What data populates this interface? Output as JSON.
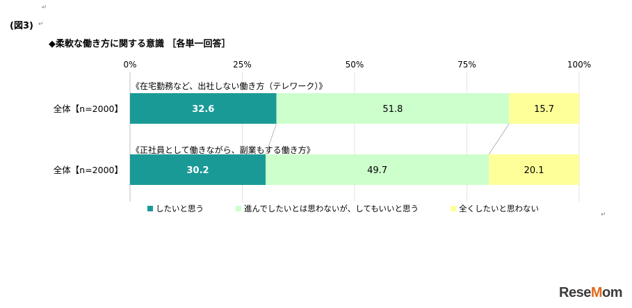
{
  "figure_label": "(図3)",
  "paragraph_mark": "↵",
  "watermark": "ReseMom",
  "colors": {
    "s1": "#1a9a97",
    "s2": "#ccffcc",
    "s3": "#ffff99",
    "axis": "#bfbfbf",
    "grid": "#e3e3e3"
  },
  "chart_data": {
    "type": "bar",
    "orientation": "horizontal-stacked-100",
    "title": "◆柔軟な働き方に関する意識 ［各単一回答］",
    "x_ticks": [
      "0%",
      "25%",
      "50%",
      "75%",
      "100%"
    ],
    "xlim": [
      0,
      100
    ],
    "grid": true,
    "legend_position": "bottom",
    "groups": [
      {
        "heading": "《在宅勤務など、出社しない働き方（テレワーク）》",
        "category": "全体【n=2000】",
        "values": [
          32.6,
          51.8,
          15.7
        ]
      },
      {
        "heading": "《正社員として働きながら、副業もする働き方》",
        "category": "全体【n=2000】",
        "values": [
          30.2,
          49.7,
          20.1
        ]
      }
    ],
    "series": [
      {
        "name": "したいと思う"
      },
      {
        "name": "進んでしたいとは思わないが、してもいいと思う"
      },
      {
        "name": "全くしたいと思わない"
      }
    ]
  }
}
